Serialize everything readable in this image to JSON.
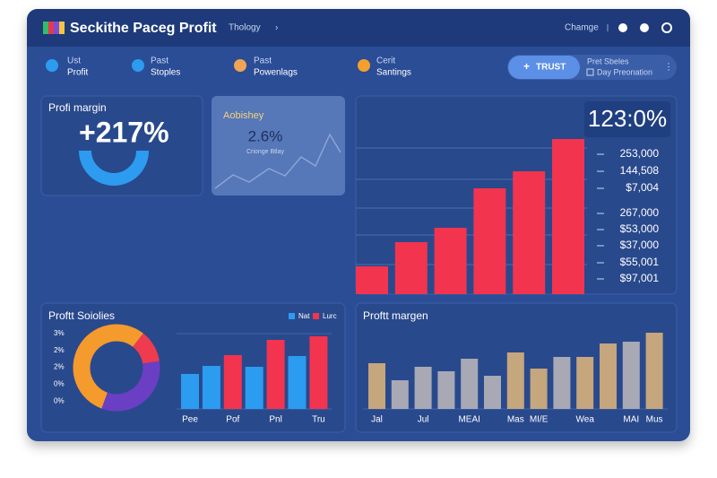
{
  "header": {
    "title": "Seckithe Paceg Profit",
    "menu": "Thology",
    "action": "Chamge"
  },
  "nav": {
    "items": [
      {
        "line1": "Ust",
        "line2": "Profit"
      },
      {
        "line1": "Past",
        "line2": "Stoples"
      },
      {
        "line1": "Past",
        "line2": "Powenlags"
      },
      {
        "line1": "Cerit",
        "line2": "Santings"
      }
    ],
    "button": "TRUST",
    "info": [
      "Pret Sbeles",
      "Day Preonation"
    ]
  },
  "cards": [
    {
      "title": "Profi margin",
      "value": "+217%"
    },
    {
      "title": "Aobishey",
      "value": "2.6%",
      "caption": "Crionge Btlay"
    }
  ],
  "chart_data": [
    {
      "type": "bar",
      "categories": [
        null,
        null,
        null,
        null,
        null,
        null
      ],
      "values": [
        31,
        58,
        74,
        118,
        137,
        173
      ],
      "color": "#f2344e",
      "annotation": "123:0%",
      "labels": [
        "253,000",
        "144,508",
        "$7,004",
        "267,000",
        "$53,000",
        "$37,000",
        "$55,001",
        "$97,001"
      ]
    },
    {
      "type": "pie",
      "values": [
        55,
        12,
        33
      ],
      "colors": [
        "#f59a2c",
        "#ee3b4f",
        "#6a3fc4"
      ]
    },
    {
      "type": "bar",
      "title": "Proftt Soiolies",
      "categories": [
        "Pee",
        null,
        "Pof",
        null,
        "Pnl",
        null,
        "Tru"
      ],
      "y_labels": [
        "3%",
        "2%",
        "2%",
        "0%",
        "0%"
      ],
      "series": [
        {
          "name": "Nat",
          "color": "#2c9cf0",
          "values": [
            39,
            48,
            null,
            47,
            null,
            59,
            null
          ]
        },
        {
          "name": "Lurc",
          "color": "#f2344e",
          "values": [
            null,
            null,
            60,
            null,
            77,
            null,
            81
          ]
        }
      ]
    },
    {
      "type": "bar",
      "title": "Proftt margen",
      "categories": [
        "Jal",
        null,
        "Jul",
        null,
        "MEAI",
        null,
        "Mas",
        "MI/E",
        null,
        "Wea",
        null,
        "MAI",
        "Mus"
      ],
      "values": [
        51,
        32,
        47,
        42,
        56,
        37,
        63,
        45,
        58,
        58,
        73,
        75,
        85
      ],
      "colors": [
        "#c6a67c",
        "#a8a9b5",
        "#a8a9b5",
        "#a8a9b5",
        "#a8a9b5",
        "#a8a9b5",
        "#c6a67c",
        "#c6a67c",
        "#a8a9b5",
        "#c6a67c",
        "#c6a67c",
        "#a8a9b5",
        "#c6a67c"
      ]
    }
  ]
}
